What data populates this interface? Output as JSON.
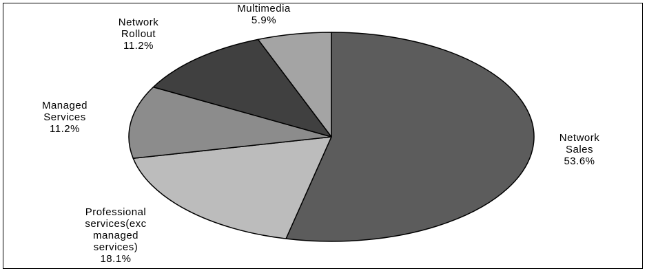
{
  "chart_data": {
    "type": "pie",
    "title": "",
    "slices": [
      {
        "label": [
          "Network",
          "Sales",
          "53.6%"
        ],
        "value": 53.6,
        "color": "#5c5c5c"
      },
      {
        "label": [
          "Professional",
          "services(exc",
          "managed",
          "services)",
          "18.1%"
        ],
        "value": 18.1,
        "color": "#bcbcbc"
      },
      {
        "label": [
          "Managed",
          "Services",
          "11.2%"
        ],
        "value": 11.2,
        "color": "#8c8c8c"
      },
      {
        "label": [
          "Network",
          "Rollout",
          "11.2%"
        ],
        "value": 11.2,
        "color": "#404040"
      },
      {
        "label": [
          "Multimedia",
          "5.9%"
        ],
        "value": 5.9,
        "color": "#a4a4a4"
      }
    ],
    "start": "12 o'clock",
    "direction": "clockwise",
    "legend": "none"
  }
}
